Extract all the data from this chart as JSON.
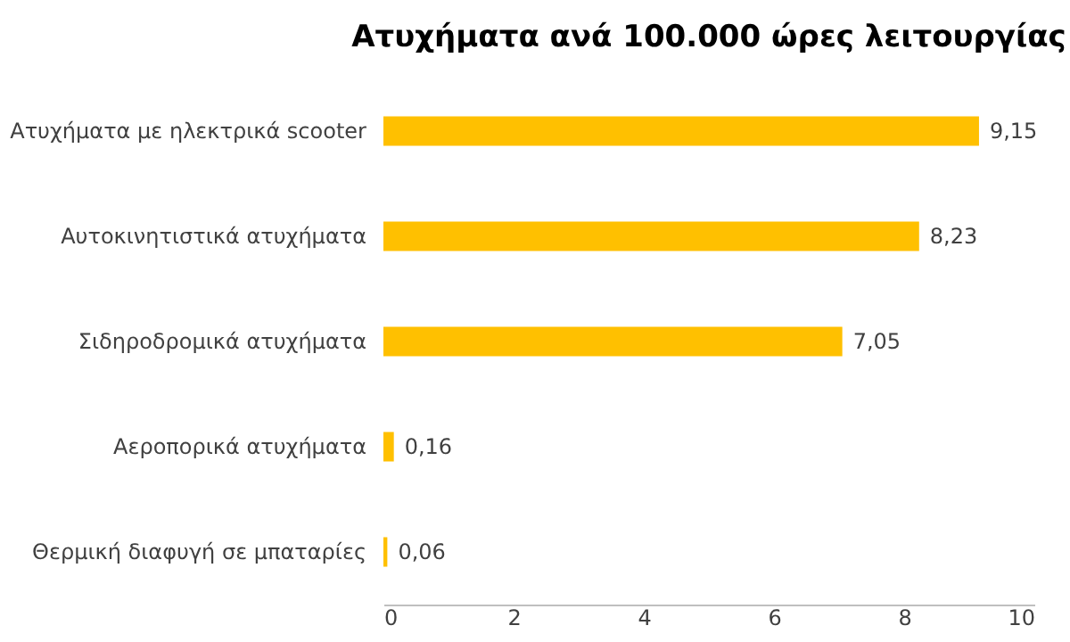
{
  "chart_data": {
    "type": "bar",
    "orientation": "horizontal",
    "title": "Ατυχήματα ανά 100.000 ώρες λειτουργίας",
    "categories": [
      "Ατυχήματα με ηλεκτρικά scooter",
      "Αυτοκινητιστικά ατυχήματα",
      "Σιδηροδρομικά ατυχήματα",
      "Αεροπορικά ατυχήματα",
      "Θερμική διαφυγή σε μπαταρίες"
    ],
    "values": [
      9.15,
      8.23,
      7.05,
      0.16,
      0.06
    ],
    "value_labels": [
      "9,15",
      "8,23",
      "7,05",
      "0,16",
      "0,06"
    ],
    "color": "#ffc000",
    "xlim": [
      0,
      10
    ],
    "xticks": [
      0,
      2,
      4,
      6,
      8,
      10
    ],
    "grid": false
  }
}
